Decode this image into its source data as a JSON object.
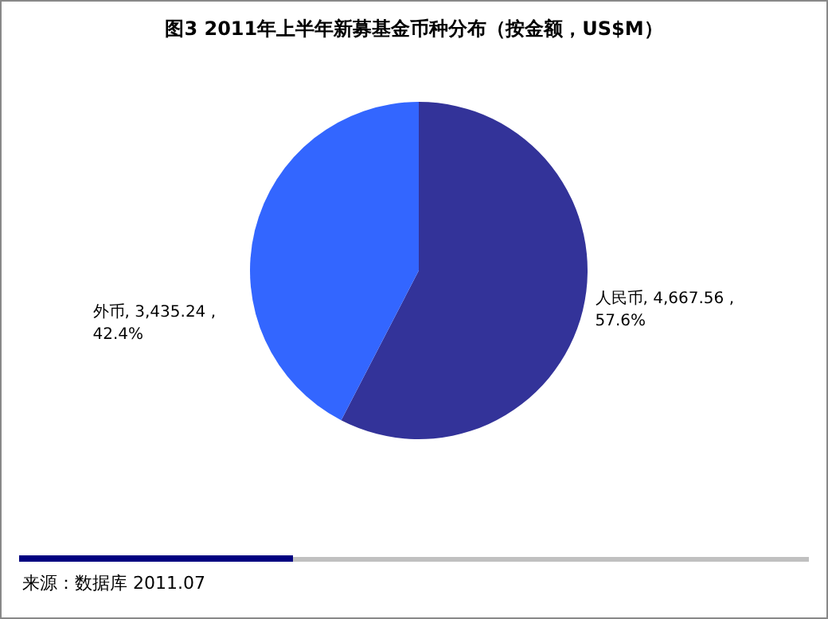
{
  "chart_data": {
    "type": "pie",
    "title": "图3  2011年上半年新募基金币种分布（按金额，US$M）",
    "categories": [
      "人民币",
      "外币"
    ],
    "values": [
      57.6,
      42.4
    ],
    "colors": [
      "#333399",
      "#3366ff"
    ],
    "value_labels": [
      ", 4,667.56 , 57.6%",
      ", 3,435.24 , 42.4%"
    ],
    "annotations": [
      "来源：数据库 2011.07"
    ],
    "legend": false
  }
}
